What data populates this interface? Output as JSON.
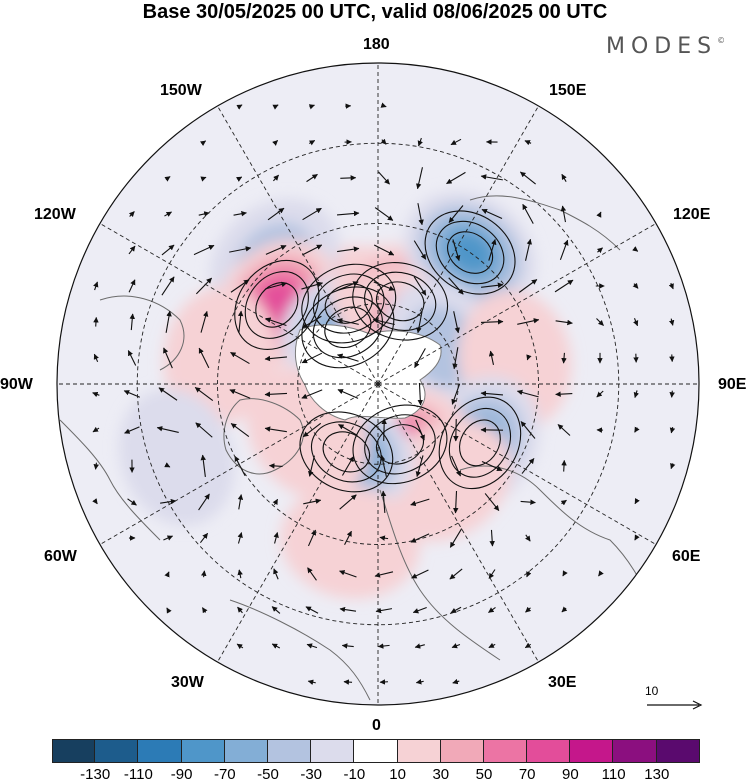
{
  "title": "Base 30/05/2025 00 UTC, valid 08/06/2025 00 UTC",
  "brand": "MODES",
  "brand_mark": "©",
  "longitude_labels": {
    "top": "180",
    "bottom": "0",
    "left": "90W",
    "right": "90E",
    "upper_left_1": "150W",
    "upper_left_2": "120W",
    "upper_right_1": "150E",
    "upper_right_2": "120E",
    "lower_left_1": "60W",
    "lower_left_2": "30W",
    "lower_right_1": "60E",
    "lower_right_2": "30E"
  },
  "reference_vector": {
    "label": "10"
  },
  "colorbar": {
    "colors": [
      "#173f5f",
      "#1d5c8c",
      "#2c7bb6",
      "#4f96c9",
      "#83aed6",
      "#b3c3e0",
      "#dcdcec",
      "#ffffff",
      "#f6d2d5",
      "#f1a9b8",
      "#ec74a4",
      "#e34d9a",
      "#c5178b",
      "#8b0f7f",
      "#5a0a6e"
    ],
    "tick_labels": [
      "-130",
      "-110",
      "-90",
      "-70",
      "-50",
      "-30",
      "-10",
      "10",
      "30",
      "50",
      "70",
      "90",
      "110",
      "130"
    ]
  },
  "anomaly_centers": [
    {
      "lon": -160,
      "colat": 16,
      "value": 70
    },
    {
      "lon": -140,
      "colat": 30,
      "value": -40
    },
    {
      "lon": -128,
      "colat": 24,
      "value": 80
    },
    {
      "lon": -152,
      "colat": 12,
      "value": -70
    },
    {
      "lon": 165,
      "colat": 16,
      "value": 60
    },
    {
      "lon": 145,
      "colat": 30,
      "value": -80
    },
    {
      "lon": 150,
      "colat": 12,
      "value": 40
    },
    {
      "lon": 120,
      "colat": 14,
      "value": -40
    },
    {
      "lon": 100,
      "colat": 26,
      "value": 30
    },
    {
      "lon": 60,
      "colat": 22,
      "value": -70
    },
    {
      "lon": 20,
      "colat": 12,
      "value": 70
    },
    {
      "lon": 35,
      "colat": 22,
      "value": 30
    },
    {
      "lon": -25,
      "colat": 14,
      "value": -80
    },
    {
      "lon": -55,
      "colat": 16,
      "value": 30
    },
    {
      "lon": -100,
      "colat": 30,
      "value": 20
    },
    {
      "lon": -70,
      "colat": 40,
      "value": -30
    },
    {
      "lon": -10,
      "colat": 30,
      "value": 20
    }
  ]
}
